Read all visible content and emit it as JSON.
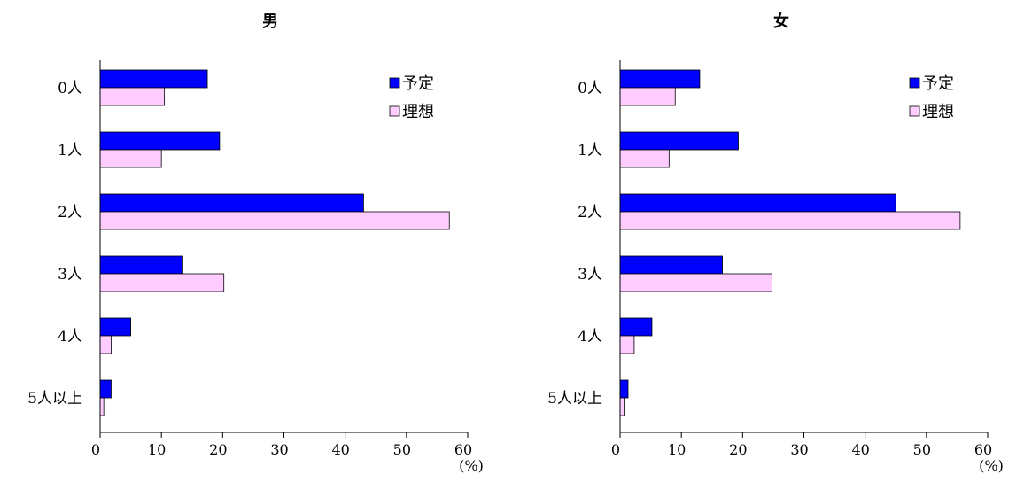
{
  "chart_data": [
    {
      "type": "bar",
      "orientation": "horizontal",
      "title": "男",
      "categories": [
        "0人",
        "1人",
        "2人",
        "3人",
        "4人",
        "5人以上"
      ],
      "series": [
        {
          "name": "予定",
          "values": [
            17.5,
            19.5,
            43.0,
            13.5,
            5.0,
            1.8
          ],
          "color": "#0000ff"
        },
        {
          "name": "理想",
          "values": [
            10.5,
            10.0,
            57.0,
            20.2,
            1.8,
            0.6
          ],
          "color": "#ffccff"
        }
      ],
      "xlim": [
        0,
        60
      ],
      "xticks": [
        "0",
        "10",
        "20",
        "30",
        "40",
        "50",
        "60"
      ],
      "unit_label": "(%)",
      "legend": "top-right",
      "grid": false
    },
    {
      "type": "bar",
      "orientation": "horizontal",
      "title": "女",
      "categories": [
        "0人",
        "1人",
        "2人",
        "3人",
        "4人",
        "5人以上"
      ],
      "series": [
        {
          "name": "予定",
          "values": [
            13.0,
            19.3,
            45.0,
            16.7,
            5.2,
            1.3
          ],
          "color": "#0000ff"
        },
        {
          "name": "理想",
          "values": [
            9.0,
            8.0,
            55.5,
            24.8,
            2.3,
            0.8
          ],
          "color": "#ffccff"
        }
      ],
      "xlim": [
        0,
        60
      ],
      "xticks": [
        "0",
        "10",
        "20",
        "30",
        "40",
        "50",
        "60"
      ],
      "unit_label": "(%)",
      "legend": "top-right",
      "grid": false
    }
  ]
}
